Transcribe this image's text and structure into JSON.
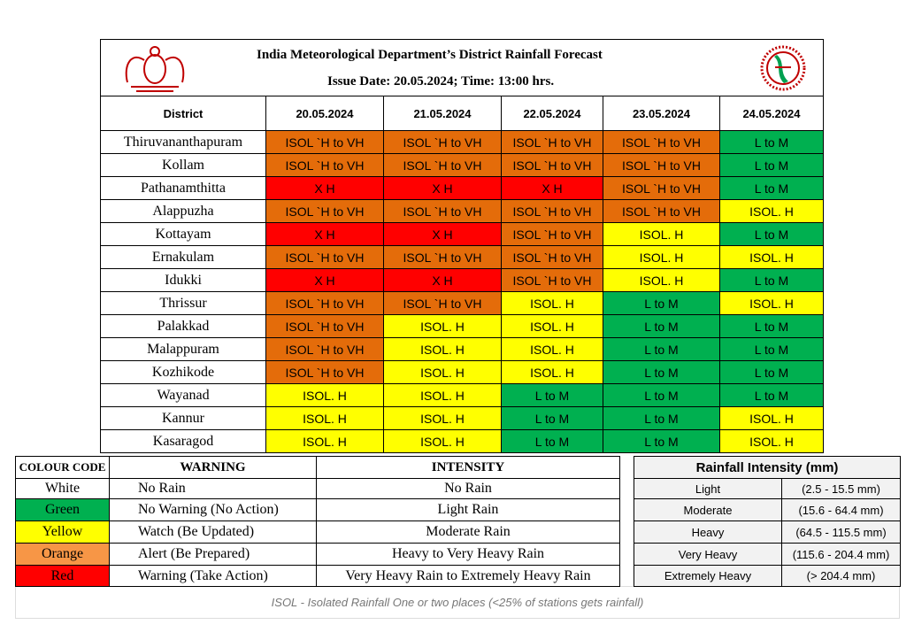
{
  "header": {
    "title": "India Meteorological Department’s District Rainfall Forecast",
    "issue": "Issue Date: 20.05.2024; Time: 13:00 hrs."
  },
  "table": {
    "columns": [
      "District",
      "20.05.2024",
      "21.05.2024",
      "22.05.2024",
      "23.05.2024",
      "24.05.2024"
    ],
    "rows": [
      [
        "Thiruvananthapuram",
        "ISOL `H to VH",
        "ISOL `H to VH",
        "ISOL `H to VH",
        "ISOL `H to VH",
        "L to M"
      ],
      [
        "Kollam",
        "ISOL `H to VH",
        "ISOL `H to VH",
        "ISOL `H to VH",
        "ISOL `H to VH",
        "L to M"
      ],
      [
        "Pathanamthitta",
        "X H",
        "X H",
        "X H",
        "ISOL `H to VH",
        "L to M"
      ],
      [
        "Alappuzha",
        "ISOL `H to VH",
        "ISOL `H to VH",
        "ISOL `H to VH",
        "ISOL `H to VH",
        "ISOL. H"
      ],
      [
        "Kottayam",
        "X H",
        "X H",
        "ISOL `H to VH",
        "ISOL. H",
        "L to M"
      ],
      [
        "Ernakulam",
        "ISOL `H to VH",
        "ISOL `H to VH",
        "ISOL `H to VH",
        "ISOL. H",
        "ISOL. H"
      ],
      [
        "Idukki",
        "X H",
        "X H",
        "ISOL `H to VH",
        "ISOL. H",
        "L to M"
      ],
      [
        "Thrissur",
        "ISOL `H to VH",
        "ISOL `H to VH",
        "ISOL. H",
        "L to M",
        "ISOL. H"
      ],
      [
        "Palakkad",
        "ISOL `H to VH",
        "ISOL. H",
        "ISOL. H",
        "L to M",
        "L to M"
      ],
      [
        "Malappuram",
        "ISOL `H to VH",
        "ISOL. H",
        "ISOL. H",
        "L to M",
        "L to M"
      ],
      [
        "Kozhikode",
        "ISOL `H to VH",
        "ISOL. H",
        "ISOL. H",
        "L to M",
        "L to M"
      ],
      [
        "Wayanad",
        "ISOL. H",
        "ISOL. H",
        "L to M",
        "L to M",
        "L to M"
      ],
      [
        "Kannur",
        "ISOL. H",
        "ISOL. H",
        "L to M",
        "L to M",
        "ISOL. H"
      ],
      [
        "Kasaragod",
        "ISOL. H",
        "ISOL. H",
        "L to M",
        "L to M",
        "ISOL. H"
      ]
    ],
    "colors": [
      [
        "#e46c0a",
        "#e46c0a",
        "#e46c0a",
        "#e46c0a",
        "#00b050"
      ],
      [
        "#e46c0a",
        "#e46c0a",
        "#e46c0a",
        "#e46c0a",
        "#00b050"
      ],
      [
        "#ff0000",
        "#ff0000",
        "#ff0000",
        "#e46c0a",
        "#00b050"
      ],
      [
        "#e46c0a",
        "#e46c0a",
        "#e46c0a",
        "#e46c0a",
        "#ffff00"
      ],
      [
        "#ff0000",
        "#ff0000",
        "#e46c0a",
        "#ffff00",
        "#00b050"
      ],
      [
        "#e46c0a",
        "#e46c0a",
        "#e46c0a",
        "#ffff00",
        "#ffff00"
      ],
      [
        "#ff0000",
        "#ff0000",
        "#e46c0a",
        "#ffff00",
        "#00b050"
      ],
      [
        "#e46c0a",
        "#e46c0a",
        "#ffff00",
        "#00b050",
        "#ffff00"
      ],
      [
        "#e46c0a",
        "#ffff00",
        "#ffff00",
        "#00b050",
        "#00b050"
      ],
      [
        "#e46c0a",
        "#ffff00",
        "#ffff00",
        "#00b050",
        "#00b050"
      ],
      [
        "#e46c0a",
        "#ffff00",
        "#ffff00",
        "#00b050",
        "#00b050"
      ],
      [
        "#ffff00",
        "#ffff00",
        "#00b050",
        "#00b050",
        "#00b050"
      ],
      [
        "#ffff00",
        "#ffff00",
        "#00b050",
        "#00b050",
        "#ffff00"
      ],
      [
        "#ffff00",
        "#ffff00",
        "#00b050",
        "#00b050",
        "#ffff00"
      ]
    ]
  },
  "legend": {
    "columns": [
      "COLOUR CODE",
      "WARNING",
      "INTENSITY"
    ],
    "rows": [
      [
        "White",
        "No Rain",
        "No Rain"
      ],
      [
        "Green",
        "No Warning (No Action)",
        "Light Rain"
      ],
      [
        "Yellow",
        "Watch (Be Updated)",
        "Moderate Rain"
      ],
      [
        "Orange",
        "Alert (Be Prepared)",
        "Heavy to Very Heavy Rain"
      ],
      [
        "Red",
        "Warning (Take Action)",
        "Very Heavy Rain to Extremely Heavy Rain"
      ]
    ],
    "colors": [
      "#ffffff",
      "#00b050",
      "#ffff00",
      "#f79646",
      "#ff0000"
    ]
  },
  "intensity": {
    "title": "Rainfall Intensity (mm)",
    "rows": [
      [
        "Light",
        "(2.5 - 15.5 mm)"
      ],
      [
        "Moderate",
        "(15.6 - 64.4 mm)"
      ],
      [
        "Heavy",
        "(64.5 - 115.5 mm)"
      ],
      [
        "Very Heavy",
        "(115.6 - 204.4 mm)"
      ],
      [
        "Extremely Heavy",
        "(> 204.4 mm)"
      ]
    ]
  },
  "footnote": "ISOL - Isolated Rainfall One or two places (<25% of stations gets rainfall)"
}
